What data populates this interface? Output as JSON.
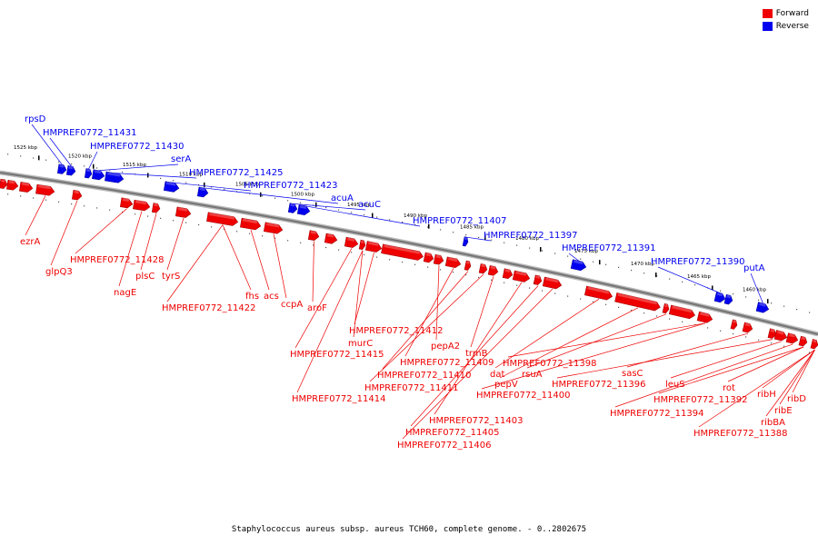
{
  "legend": {
    "forward_label": "Forward",
    "reverse_label": "Reverse",
    "forward_color": "#ee0000",
    "reverse_color": "#0000ee"
  },
  "title": "Staphylococcus aureus subsp. aureus TCH60, complete genome. - 0..2802675",
  "colors": {
    "forward": "#ee0000",
    "reverse": "#0000ee",
    "backbone": "#777777"
  },
  "ticks": [
    "1525 kbp",
    "1520 kbp",
    "1515 kbp",
    "1510 kbp",
    "1505 kbp",
    "1500 kbp",
    "1495 kbp",
    "1490 kbp",
    "1485 kbp",
    "1480 kbp",
    "1475 kbp",
    "1470 kbp",
    "1465 kbp",
    "1460 kbp"
  ],
  "reverse_labels": [
    "rpsD",
    "HMPREF0772_11431",
    "HMPREF0772_11430",
    "serA",
    "HMPREF0772_11425",
    "HMPREF0772_11423",
    "acuA",
    "acuC",
    "HMPREF0772_11407",
    "HMPREF0772_11397",
    "HMPREF0772_11391",
    "HMPREF0772_11390",
    "putA"
  ],
  "forward_labels": [
    "ezrA",
    "glpQ3",
    "HMPREF0772_11428",
    "nagE",
    "plsC",
    "tyrS",
    "HMPREF0772_11422",
    "fhs",
    "acs",
    "ccpA",
    "aroF",
    "HMPREF0772_11415",
    "murC",
    "HMPREF0772_11412",
    "HMPREF0772_11414",
    "pepA2",
    "HMPREF0772_11409",
    "HMPREF0772_11410",
    "HMPREF0772_11411",
    "trmB",
    "HMPREF0772_11403",
    "HMPREF0772_11405",
    "HMPREF0772_11406",
    "dat",
    "pepV",
    "rsuA",
    "HMPREF0772_11398",
    "HMPREF0772_11400",
    "sasC",
    "HMPREF0772_11396",
    "leuS",
    "HMPREF0772_11394",
    "rot",
    "HMPREF0772_11392",
    "ribH",
    "ribBA",
    "ribE",
    "ribD",
    "HMPREF0772_11388"
  ]
}
